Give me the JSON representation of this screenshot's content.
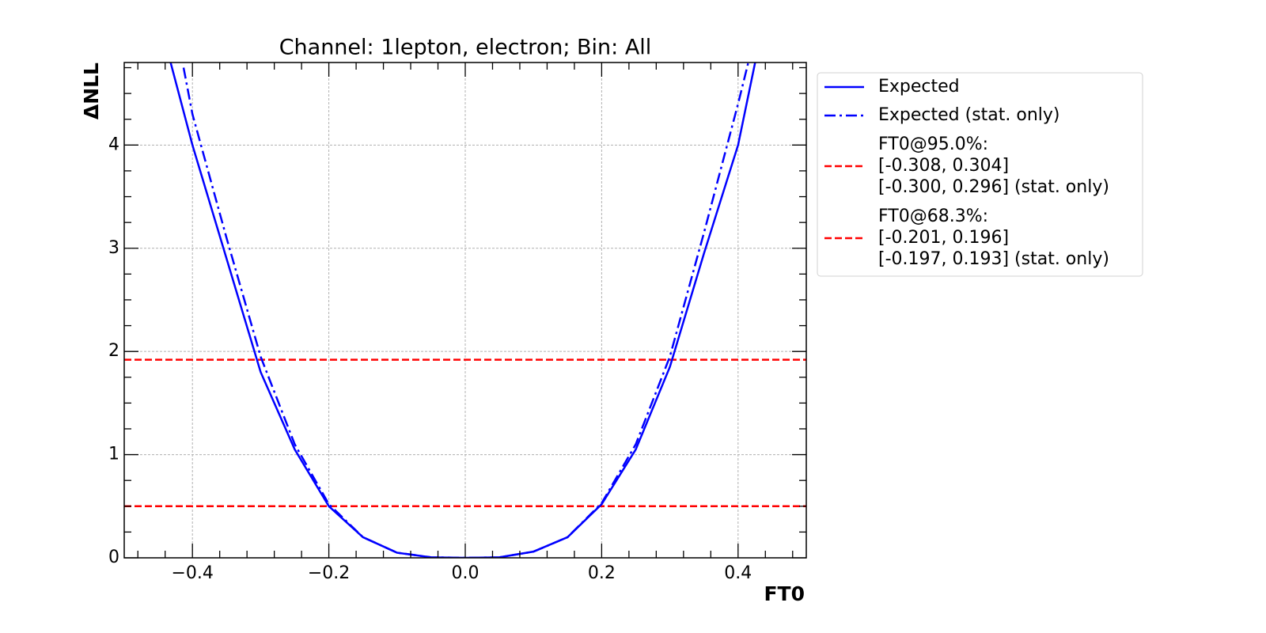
{
  "chart_data": {
    "type": "line",
    "title": "Channel: 1lepton, electron; Bin: All",
    "xlabel": "FT0",
    "ylabel": "ΔNLL",
    "xlim": [
      -0.5,
      0.5
    ],
    "ylim": [
      0,
      4.8
    ],
    "xticks": [
      {
        "value": -0.4,
        "label": "−0.4"
      },
      {
        "value": -0.2,
        "label": "−0.2"
      },
      {
        "value": 0,
        "label": "0.0"
      },
      0.2,
      0.4
    ],
    "yticks": [
      0,
      1,
      2,
      3,
      4
    ],
    "xminorticks": [
      -0.48,
      -0.44,
      -0.36,
      -0.32,
      -0.28,
      -0.24,
      -0.16,
      -0.12,
      -0.08,
      -0.04,
      0.04,
      0.08,
      0.12,
      0.16,
      0.24,
      0.28,
      0.32,
      0.36,
      0.44,
      0.48
    ],
    "yminorticks": [
      0.25,
      0.5,
      0.75,
      1.25,
      1.5,
      1.75,
      2.25,
      2.5,
      2.75,
      3.25,
      3.5,
      3.75,
      4.25,
      4.5,
      4.75
    ],
    "grid": true,
    "legend": "outside upper right",
    "series": [
      {
        "name": "Expected",
        "color": "#0000ff",
        "linestyle": "solid",
        "x": [
          -0.432,
          -0.4,
          -0.35,
          -0.3,
          -0.25,
          -0.2,
          -0.15,
          -0.1,
          -0.05,
          0,
          0.05,
          0.1,
          0.15,
          0.2,
          0.25,
          0.3,
          0.35,
          0.4,
          0.425
        ],
        "values": [
          4.8,
          4.0,
          2.9,
          1.8,
          1.05,
          0.5,
          0.2,
          0.05,
          0.005,
          0,
          0.005,
          0.06,
          0.2,
          0.52,
          1.05,
          1.85,
          2.95,
          4.0,
          4.8
        ]
      },
      {
        "name": "Expected (stat. only)",
        "color": "#0000ff",
        "linestyle": "dashdot",
        "x": [
          -0.413,
          -0.4,
          -0.35,
          -0.3,
          -0.25,
          -0.2,
          -0.15,
          -0.1,
          -0.05,
          0,
          0.05,
          0.1,
          0.15,
          0.2,
          0.25,
          0.3,
          0.35,
          0.4,
          0.415
        ],
        "values": [
          4.75,
          4.3,
          3.1,
          1.95,
          1.1,
          0.52,
          0.2,
          0.05,
          0.005,
          0,
          0.005,
          0.06,
          0.2,
          0.53,
          1.1,
          1.95,
          3.15,
          4.4,
          4.8
        ]
      }
    ],
    "hlines": [
      {
        "y": 1.92,
        "color": "#ff0000",
        "label": [
          "FT0@95.0%:",
          "[-0.308, 0.304]",
          "[-0.300, 0.296] (stat. only)"
        ]
      },
      {
        "y": 0.5,
        "color": "#ff0000",
        "label": [
          "FT0@68.3%:",
          "[-0.201, 0.196]",
          "[-0.197, 0.193] (stat. only)"
        ]
      }
    ]
  }
}
